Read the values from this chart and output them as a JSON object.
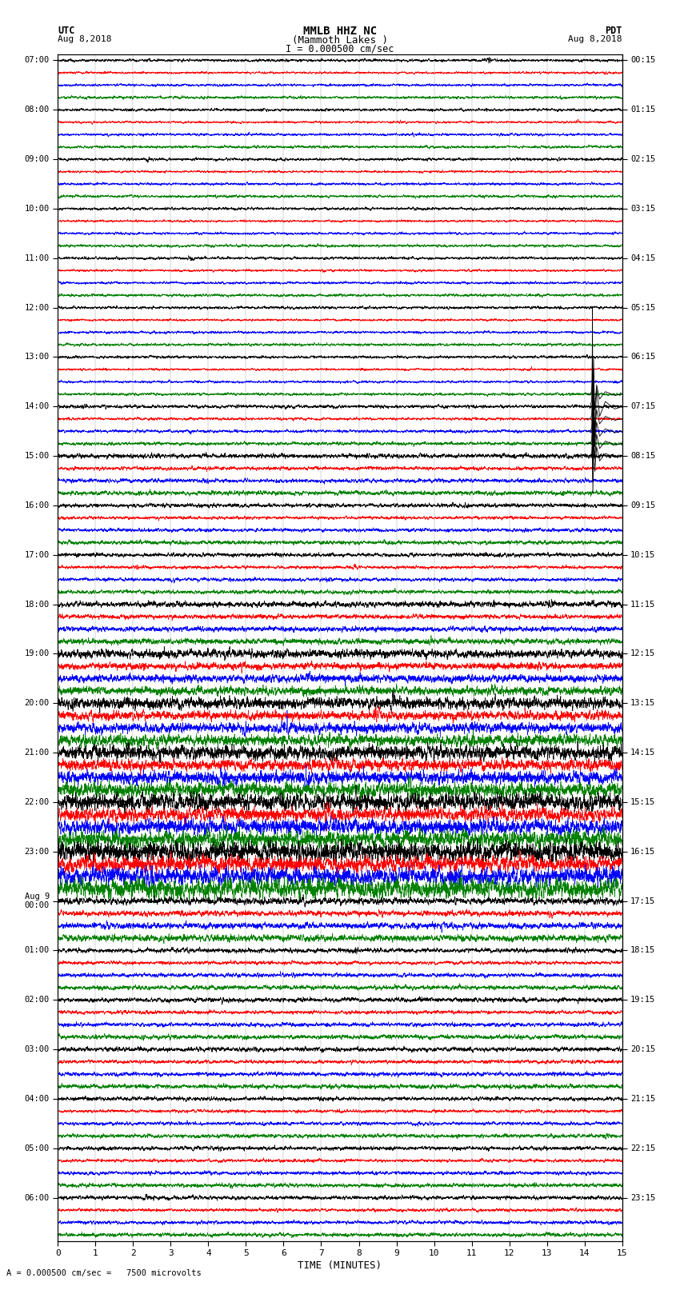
{
  "title_line1": "MMLB HHZ NC",
  "title_line2": "(Mammoth Lakes )",
  "scale_text": "I = 0.000500 cm/sec",
  "label_left_top": "UTC",
  "label_left_date": "Aug 8,2018",
  "label_right_top": "PDT",
  "label_right_date": "Aug 8,2018",
  "xlabel": "TIME (MINUTES)",
  "footer": "= 0.000500 cm/sec =   7500 microvolts",
  "utc_labels": [
    "07:00",
    "08:00",
    "09:00",
    "10:00",
    "11:00",
    "12:00",
    "13:00",
    "14:00",
    "15:00",
    "16:00",
    "17:00",
    "18:00",
    "19:00",
    "20:00",
    "21:00",
    "22:00",
    "23:00",
    "Aug 9\n00:00",
    "01:00",
    "02:00",
    "03:00",
    "04:00",
    "05:00",
    "06:00"
  ],
  "pdt_labels": [
    "00:15",
    "01:15",
    "02:15",
    "03:15",
    "04:15",
    "05:15",
    "06:15",
    "07:15",
    "08:15",
    "09:15",
    "10:15",
    "11:15",
    "12:15",
    "13:15",
    "14:15",
    "15:15",
    "16:15",
    "17:15",
    "18:15",
    "19:15",
    "20:15",
    "21:15",
    "22:15",
    "23:15"
  ],
  "row_colors": [
    "black",
    "red",
    "blue",
    "green"
  ],
  "bg_color": "white",
  "grid_color": "#888888",
  "fig_width": 8.5,
  "fig_height": 16.13,
  "xmin": 0,
  "xmax": 15,
  "n_traces_per_hour": 4,
  "n_hours": 24,
  "rows_per_hour": 4,
  "noise_levels": [
    0.12,
    0.12,
    0.12,
    0.12,
    0.12,
    0.12,
    0.12,
    0.12,
    0.12,
    0.12,
    0.12,
    0.14,
    0.18,
    0.25,
    0.35,
    0.42,
    0.5,
    0.55,
    0.6,
    0.55,
    0.5,
    0.45,
    0.4,
    0.35
  ],
  "big_spike_hour": 7,
  "big_spike_minute": 14.2,
  "big_spike_amplitude": 8.0,
  "lw": 0.45
}
